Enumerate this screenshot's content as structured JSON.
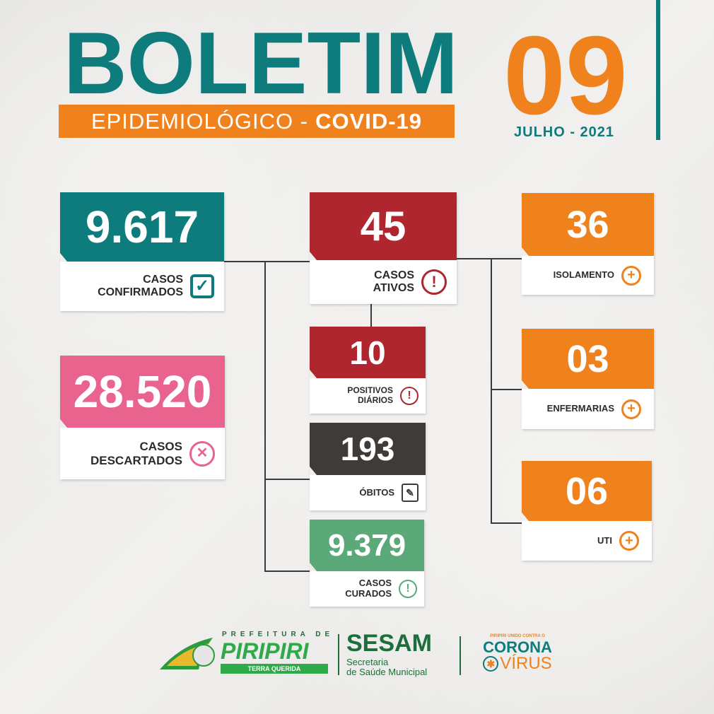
{
  "header": {
    "title": "BOLETIM",
    "subtitle_prefix": "EPIDEMIOLÓGICO -",
    "subtitle_bold": "COVID-19",
    "day": "09",
    "month_year": "JULHO - 2021"
  },
  "colors": {
    "teal": "#0e7b7c",
    "orange": "#f0821e",
    "red": "#b0262f",
    "pink": "#e9638f",
    "dark": "#3f3b38",
    "green": "#5ba878"
  },
  "cards": {
    "confirmados": {
      "value": "9.617",
      "label1": "CASOS",
      "label2": "CONFIRMADOS",
      "icon": "checkbox-icon"
    },
    "descartados": {
      "value": "28.520",
      "label1": "CASOS",
      "label2": "DESCARTADOS",
      "icon": "x-circle-icon"
    },
    "ativos": {
      "value": "45",
      "label1": "CASOS",
      "label2": "ATIVOS",
      "icon": "exclamation-icon"
    },
    "positivos": {
      "value": "10",
      "label1": "POSITIVOS",
      "label2": "DIÁRIOS",
      "icon": "exclamation-icon"
    },
    "obitos": {
      "value": "193",
      "label1": "ÓBITOS",
      "icon": "document-pen-icon"
    },
    "curados": {
      "value": "9.379",
      "label1": "CASOS",
      "label2": "CURADOS",
      "icon": "exclamation-icon"
    },
    "isolamento": {
      "value": "36",
      "label1": "ISOLAMENTO",
      "icon": "plus-circle-icon"
    },
    "enfermarias": {
      "value": "03",
      "label1": "ENFERMARIAS",
      "icon": "plus-circle-icon"
    },
    "uti": {
      "value": "06",
      "label1": "UTI",
      "icon": "plus-circle-icon"
    }
  },
  "footer": {
    "prefeitura": "PREFEITURA DE",
    "city": "PIRIPIRI",
    "motto": "TERRA QUERIDA",
    "sesam": "SESAM",
    "sesam_sub1": "Secretaria",
    "sesam_sub2": "de Saúde Municipal",
    "campaign_top": "PIRIPIRI UNIDO CONTRA O",
    "campaign_1": "CORONA",
    "campaign_2": "VÍRUS"
  }
}
